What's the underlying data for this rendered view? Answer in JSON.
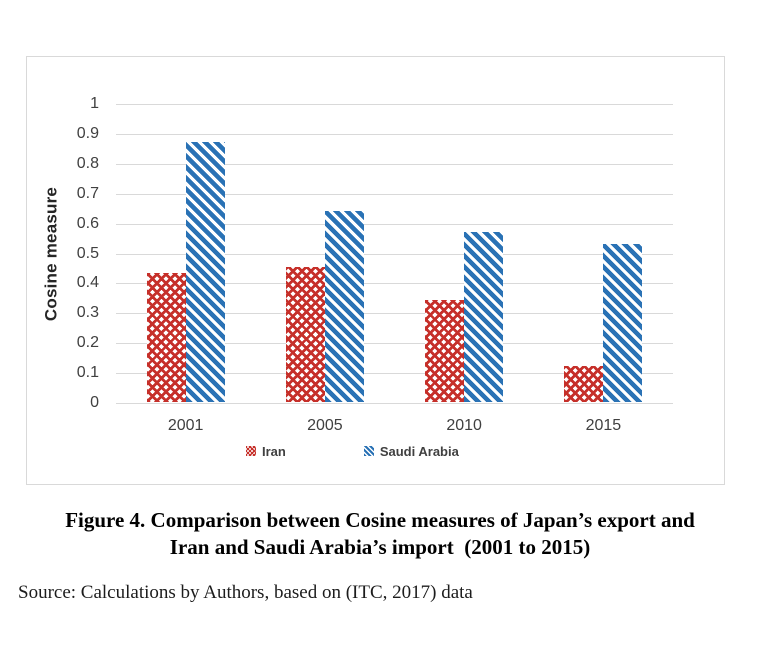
{
  "chart_data": {
    "type": "bar",
    "categories": [
      "2001",
      "2005",
      "2010",
      "2015"
    ],
    "series": [
      {
        "name": "Iran",
        "values": [
          0.43,
          0.45,
          0.34,
          0.12
        ],
        "color": "#c6302a",
        "pattern": "trellis"
      },
      {
        "name": "Saudi Arabia",
        "values": [
          0.87,
          0.64,
          0.57,
          0.53
        ],
        "color": "#2a72b5",
        "pattern": "diagonal"
      }
    ],
    "title": "",
    "xlabel": "",
    "ylabel": "Cosine measure",
    "ylim": [
      0,
      1
    ],
    "ytick_step": 0.1,
    "grid": true,
    "legend_position": "bottom",
    "gridline_color": "#d9d9d9",
    "axis_text_color": "#404040"
  },
  "caption": {
    "line1": "Figure 4. Comparison between Cosine measures of Japan’s export and",
    "line2": "Iran and Saudi Arabia’s import  (2001 to 2015)"
  },
  "source_note": "Source: Calculations by Authors, based on (ITC, 2017) data"
}
